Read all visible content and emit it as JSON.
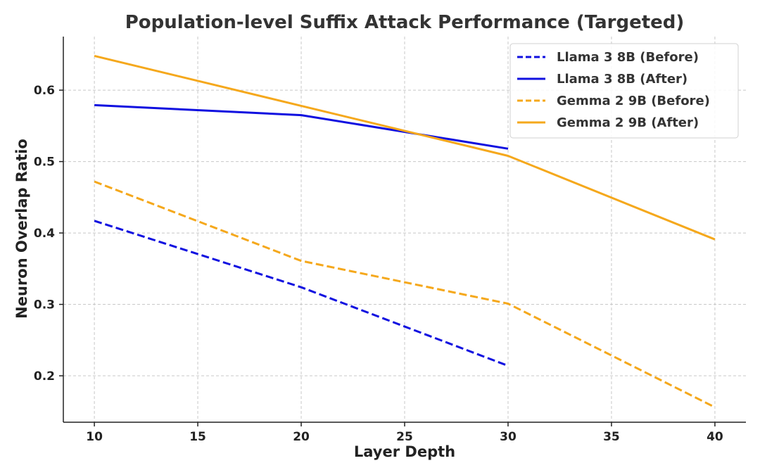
{
  "chart_data": {
    "type": "line",
    "title": "Population-level Suffix Attack Performance (Targeted)",
    "xlabel": "Layer Depth",
    "ylabel": "Neuron Overlap Ratio",
    "xlim": [
      8.5,
      41.5
    ],
    "ylim": [
      0.135,
      0.675
    ],
    "xticks": [
      10,
      15,
      20,
      25,
      30,
      35,
      40
    ],
    "yticks": [
      0.2,
      0.3,
      0.4,
      0.5,
      0.6
    ],
    "ytick_labels": [
      "0.2",
      "0.3",
      "0.4",
      "0.5",
      "0.6"
    ],
    "grid": true,
    "legend_position": "top-right",
    "series": [
      {
        "name": "Llama 3 8B (Before)",
        "color": "#1010e0",
        "style": "dashed",
        "x": [
          10,
          20,
          30
        ],
        "y": [
          0.417,
          0.324,
          0.214
        ]
      },
      {
        "name": "Llama 3 8B (After)",
        "color": "#1010e0",
        "style": "solid",
        "x": [
          10,
          20,
          30
        ],
        "y": [
          0.579,
          0.565,
          0.518
        ]
      },
      {
        "name": "Gemma 2 9B (Before)",
        "color": "#f5a81c",
        "style": "dashed",
        "x": [
          10,
          20,
          30,
          40
        ],
        "y": [
          0.472,
          0.361,
          0.301,
          0.156
        ]
      },
      {
        "name": "Gemma 2 9B (After)",
        "color": "#f5a81c",
        "style": "solid",
        "x": [
          10,
          20,
          30,
          40
        ],
        "y": [
          0.648,
          0.578,
          0.508,
          0.391
        ]
      }
    ]
  }
}
